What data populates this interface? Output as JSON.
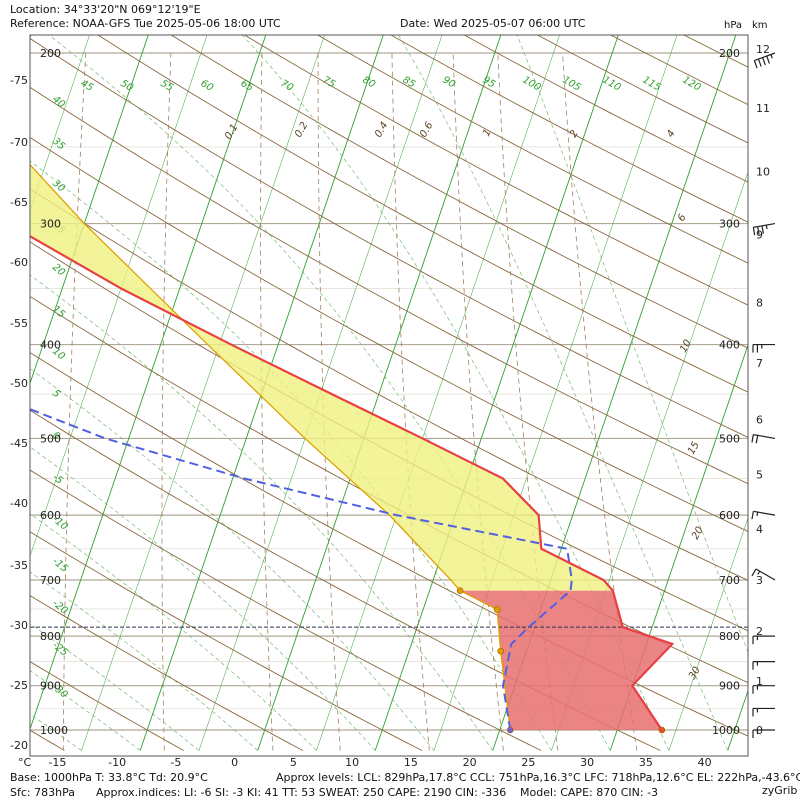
{
  "header": {
    "location": "Location:  34°33'20\"N  069°12'19\"E",
    "reference": "Reference: NOAA-GFS Tue 2025-05-06 18:00 UTC",
    "date": "Date: Wed 2025-05-07 06:00 UTC",
    "unit_hpa": "hPa",
    "unit_km": "km"
  },
  "footer": {
    "line1_base": "Base: 1000hPa  T: 33.8°C  Td: 20.9°C",
    "line1_levels": "Approx levels:  LCL: 829hPa,17.8°C   CCL: 751hPa,16.3°C   LFC: 718hPa,12.6°C   EL: 222hPa,-43.6°C",
    "line2_sfc": "Sfc: 783hPa",
    "line2_indices": "Approx.indices:  LI: -6   SI: -3   KI: 41   TT: 53   SWEAT: 250     CAPE: 2190  CIN: -336",
    "line2_model": "Model: CAPE: 870 CIN: -3",
    "brand": "zyGrib"
  },
  "colors": {
    "temperature": "#e84040",
    "dewpoint": "#5060e0",
    "parcel": "#e0a000",
    "cape_fill": "#f0f080",
    "cin_fill": "#e87070",
    "isobar": "#b0a898",
    "isotherm": "#30a030",
    "dry_adiabat": "#8a6840",
    "moist_adiabat": "#60b060",
    "mixing_ratio": "#a08060"
  },
  "chart_data": {
    "type": "skew-t",
    "x_unit": "°C",
    "x_ticks": [
      "-15",
      "-10",
      "-5",
      "0",
      "5",
      "10",
      "15",
      "20",
      "25",
      "30",
      "35",
      "40"
    ],
    "left_ticks": [
      "-75",
      "-70",
      "-65",
      "-60",
      "-55",
      "-50",
      "-45",
      "-40",
      "-35",
      "-30",
      "-25",
      "-20"
    ],
    "pressure_ticks": [
      "200",
      "300",
      "400",
      "500",
      "600",
      "700",
      "800",
      "900",
      "1000"
    ],
    "km_ticks": [
      "0",
      "1",
      "2",
      "3",
      "4",
      "5",
      "6",
      "7",
      "8",
      "9",
      "10",
      "11",
      "12"
    ],
    "temperature_profile": [
      [
        1000,
        33.8
      ],
      [
        900,
        30.0
      ],
      [
        815,
        32.2
      ],
      [
        783,
        27.5
      ],
      [
        718,
        25.6
      ],
      [
        700,
        24.5
      ],
      [
        650,
        18.3
      ],
      [
        600,
        17.1
      ],
      [
        550,
        13.0
      ],
      [
        500,
        5.0
      ],
      [
        450,
        -4.0
      ],
      [
        400,
        -14.0
      ],
      [
        350,
        -25.0
      ],
      [
        300,
        -36.5
      ],
      [
        250,
        -37.5
      ],
      [
        222,
        -43.6
      ],
      [
        200,
        -46.0
      ]
    ],
    "dewpoint_profile": [
      [
        1000,
        20.9
      ],
      [
        900,
        19.0
      ],
      [
        815,
        18.5
      ],
      [
        783,
        19.5
      ],
      [
        718,
        22.0
      ],
      [
        700,
        21.8
      ],
      [
        650,
        20.5
      ],
      [
        600,
        5.0
      ],
      [
        550,
        -9.0
      ],
      [
        500,
        -22.0
      ],
      [
        450,
        -33.0
      ],
      [
        400,
        -46.0
      ],
      [
        350,
        -60.0
      ],
      [
        300,
        -70.0
      ],
      [
        200,
        -85.0
      ]
    ],
    "parcel_profile": [
      [
        1000,
        20.9
      ],
      [
        829,
        17.8
      ],
      [
        751,
        16.3
      ],
      [
        718,
        12.6
      ],
      [
        700,
        11.5
      ],
      [
        600,
        4.4
      ],
      [
        500,
        -5.0
      ],
      [
        400,
        -16.0
      ],
      [
        300,
        -30.0
      ],
      [
        222,
        -43.6
      ],
      [
        200,
        -48.0
      ]
    ],
    "markers": {
      "lcl": {
        "p": 829,
        "t": 17.8
      },
      "ccl": {
        "p": 751,
        "t": 16.3
      },
      "lfc": {
        "p": 718,
        "t": 12.6
      },
      "el": {
        "p": 222,
        "t": -43.6
      },
      "sfc_t": {
        "p": 1000,
        "t": 33.8
      },
      "sfc_td": {
        "p": 1000,
        "t": 20.9
      }
    },
    "dry_adiabat_labels": [
      "45",
      "50",
      "55",
      "60",
      "65",
      "70",
      "75",
      "80",
      "85",
      "90",
      "95",
      "100",
      "105",
      "110",
      "115",
      "120"
    ],
    "moist_adiabat_labels": [
      "40",
      "35",
      "30",
      "25",
      "20",
      "15",
      "10",
      "5",
      "0",
      "-5",
      "-10",
      "-15",
      "-20",
      "-25",
      "-30"
    ],
    "mixing_ratio_labels": [
      "0.1",
      "0.2",
      "0.4",
      "0.6",
      "1",
      "2",
      "4",
      "6",
      "10",
      "15",
      "20",
      "30"
    ],
    "surface_pressure_line": 783,
    "wind_barbs": [
      {
        "p": 200,
        "dir": 250,
        "kt": 45
      },
      {
        "p": 300,
        "dir": 260,
        "kt": 35
      },
      {
        "p": 400,
        "dir": 270,
        "kt": 25
      },
      {
        "p": 500,
        "dir": 280,
        "kt": 20
      },
      {
        "p": 600,
        "dir": 280,
        "kt": 15
      },
      {
        "p": 700,
        "dir": 300,
        "kt": 15
      },
      {
        "p": 800,
        "dir": 270,
        "kt": 15
      },
      {
        "p": 850,
        "dir": 270,
        "kt": 15
      },
      {
        "p": 900,
        "dir": 270,
        "kt": 15
      },
      {
        "p": 950,
        "dir": 270,
        "kt": 15
      },
      {
        "p": 1000,
        "dir": 270,
        "kt": 15
      }
    ]
  }
}
